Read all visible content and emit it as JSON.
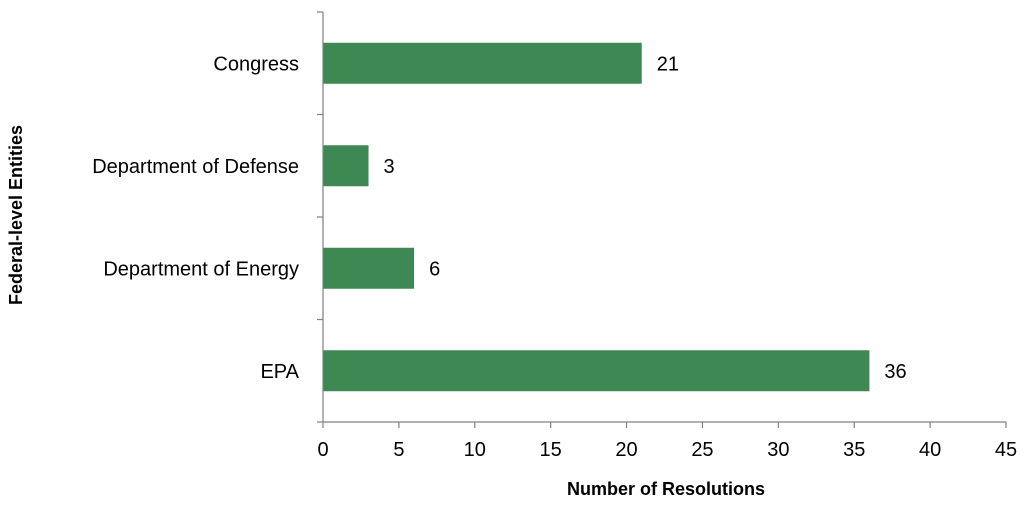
{
  "chart_data": {
    "type": "bar",
    "orientation": "horizontal",
    "categories": [
      "Congress",
      "Department of Defense",
      "Department of Energy",
      "EPA"
    ],
    "values": [
      21,
      3,
      6,
      36
    ],
    "xlabel": "Number of Resolutions",
    "ylabel": "Federal-level Entities",
    "xlim": [
      0,
      45
    ],
    "xticks": [
      0,
      5,
      10,
      15,
      20,
      25,
      30,
      35,
      40,
      45
    ],
    "grid": false,
    "legend": "none",
    "bar_color": "#3e8853"
  }
}
